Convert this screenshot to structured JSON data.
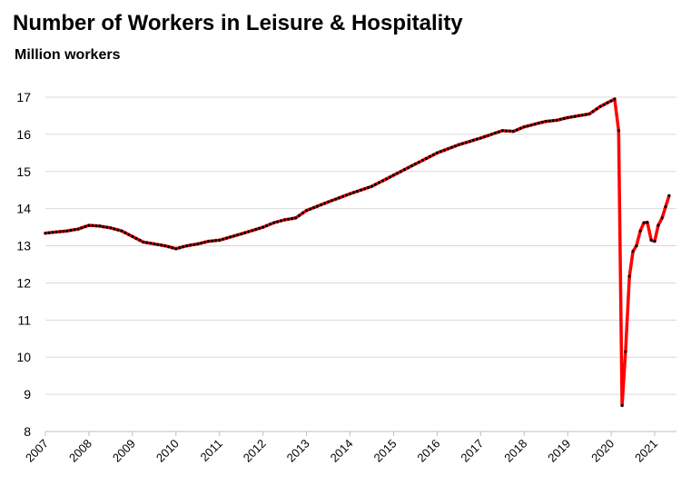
{
  "chart_data": {
    "type": "line",
    "title": "Number of Workers in Leisure & Hospitality",
    "subtitle": "Million workers",
    "ylim": [
      8,
      17
    ],
    "yticks": [
      8,
      9,
      10,
      11,
      12,
      13,
      14,
      15,
      16,
      17
    ],
    "xlim": [
      2007,
      2021.5
    ],
    "xticks": [
      "2007",
      "2008",
      "2009",
      "2010",
      "2011",
      "2012",
      "2013",
      "2014",
      "2015",
      "2016",
      "2017",
      "2018",
      "2019",
      "2020",
      "2021"
    ],
    "grid": true,
    "line_color": "#ff0000",
    "marker_color": "#000000",
    "series": [
      {
        "keypoints": [
          [
            2007.0,
            13.34
          ],
          [
            2007.5,
            13.4
          ],
          [
            2007.75,
            13.45
          ],
          [
            2008.0,
            13.55
          ],
          [
            2008.25,
            13.53
          ],
          [
            2008.5,
            13.48
          ],
          [
            2008.75,
            13.4
          ],
          [
            2009.0,
            13.25
          ],
          [
            2009.25,
            13.1
          ],
          [
            2009.5,
            13.05
          ],
          [
            2009.75,
            13.0
          ],
          [
            2010.0,
            12.92
          ],
          [
            2010.25,
            13.0
          ],
          [
            2010.5,
            13.05
          ],
          [
            2010.75,
            13.12
          ],
          [
            2011.0,
            13.15
          ],
          [
            2011.5,
            13.32
          ],
          [
            2012.0,
            13.5
          ],
          [
            2012.25,
            13.62
          ],
          [
            2012.5,
            13.7
          ],
          [
            2012.75,
            13.75
          ],
          [
            2013.0,
            13.95
          ],
          [
            2013.5,
            14.18
          ],
          [
            2014.0,
            14.4
          ],
          [
            2014.5,
            14.6
          ],
          [
            2015.0,
            14.9
          ],
          [
            2015.5,
            15.2
          ],
          [
            2016.0,
            15.5
          ],
          [
            2016.5,
            15.72
          ],
          [
            2017.0,
            15.9
          ],
          [
            2017.5,
            16.1
          ],
          [
            2017.75,
            16.08
          ],
          [
            2018.0,
            16.2
          ],
          [
            2018.5,
            16.35
          ],
          [
            2018.75,
            16.38
          ],
          [
            2019.0,
            16.45
          ],
          [
            2019.5,
            16.55
          ],
          [
            2019.75,
            16.75
          ],
          [
            2020.08,
            16.95
          ],
          [
            2020.17,
            16.1
          ],
          [
            2020.25,
            8.7
          ],
          [
            2020.33,
            10.15
          ],
          [
            2020.42,
            12.18
          ],
          [
            2020.5,
            12.85
          ],
          [
            2020.58,
            13.0
          ],
          [
            2020.67,
            13.4
          ],
          [
            2020.75,
            13.62
          ],
          [
            2020.83,
            13.63
          ],
          [
            2020.92,
            13.15
          ],
          [
            2021.0,
            13.12
          ],
          [
            2021.08,
            13.55
          ],
          [
            2021.17,
            13.75
          ],
          [
            2021.25,
            14.05
          ],
          [
            2021.33,
            14.35
          ]
        ]
      }
    ]
  }
}
